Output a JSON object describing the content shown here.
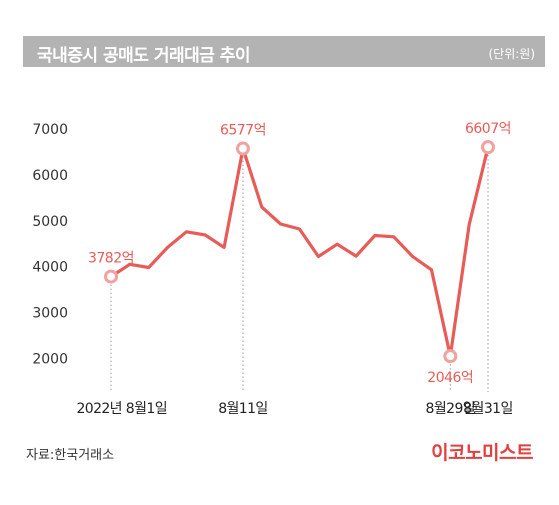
{
  "header": {
    "title": "국내증시 공매도 거래대금 추이",
    "unit": "(단위:원)"
  },
  "footer": {
    "source": "자료:한국거래소",
    "logo": "이코노미스트"
  },
  "colors": {
    "line": "#e85c58",
    "marker_fill": "#f2a19e",
    "annotation": "#e85c58",
    "title_bar": "#b3b3b3",
    "logo": "#e2403f"
  },
  "chart_data": {
    "type": "line",
    "title": "국내증시 공매도 거래대금 추이",
    "ylabel": "",
    "xlabel": "",
    "ylim": [
      1700,
      7200
    ],
    "yticks": [
      2000,
      3000,
      4000,
      5000,
      6000,
      7000
    ],
    "grid": false,
    "points": [
      {
        "date": "2022-08-01",
        "value": 3782
      },
      {
        "date": "2022-08-02",
        "value": 4050
      },
      {
        "date": "2022-08-03",
        "value": 3980
      },
      {
        "date": "2022-08-04",
        "value": 4420
      },
      {
        "date": "2022-08-05",
        "value": 4760
      },
      {
        "date": "2022-08-08",
        "value": 4690
      },
      {
        "date": "2022-08-10",
        "value": 4420
      },
      {
        "date": "2022-08-11",
        "value": 6577
      },
      {
        "date": "2022-08-12",
        "value": 5300
      },
      {
        "date": "2022-08-16",
        "value": 4930
      },
      {
        "date": "2022-08-17",
        "value": 4820
      },
      {
        "date": "2022-08-18",
        "value": 4220
      },
      {
        "date": "2022-08-19",
        "value": 4490
      },
      {
        "date": "2022-08-22",
        "value": 4230
      },
      {
        "date": "2022-08-23",
        "value": 4680
      },
      {
        "date": "2022-08-24",
        "value": 4650
      },
      {
        "date": "2022-08-25",
        "value": 4220
      },
      {
        "date": "2022-08-26",
        "value": 3930
      },
      {
        "date": "2022-08-29",
        "value": 2046
      },
      {
        "date": "2022-08-30",
        "value": 4920
      },
      {
        "date": "2022-08-31",
        "value": 6607
      }
    ],
    "x_ticks": [
      {
        "date": "2022-08-01",
        "label": "2022년 8월1일"
      },
      {
        "date": "2022-08-11",
        "label": "8월11일"
      },
      {
        "date": "2022-08-29",
        "label": "8월29일"
      },
      {
        "date": "2022-08-31",
        "label": "8월31일"
      }
    ],
    "annotations": [
      {
        "date": "2022-08-01",
        "text": "3782억",
        "position": "above"
      },
      {
        "date": "2022-08-11",
        "text": "6577억",
        "position": "above"
      },
      {
        "date": "2022-08-29",
        "text": "2046억",
        "position": "below"
      },
      {
        "date": "2022-08-31",
        "text": "6607억",
        "position": "above"
      }
    ]
  }
}
